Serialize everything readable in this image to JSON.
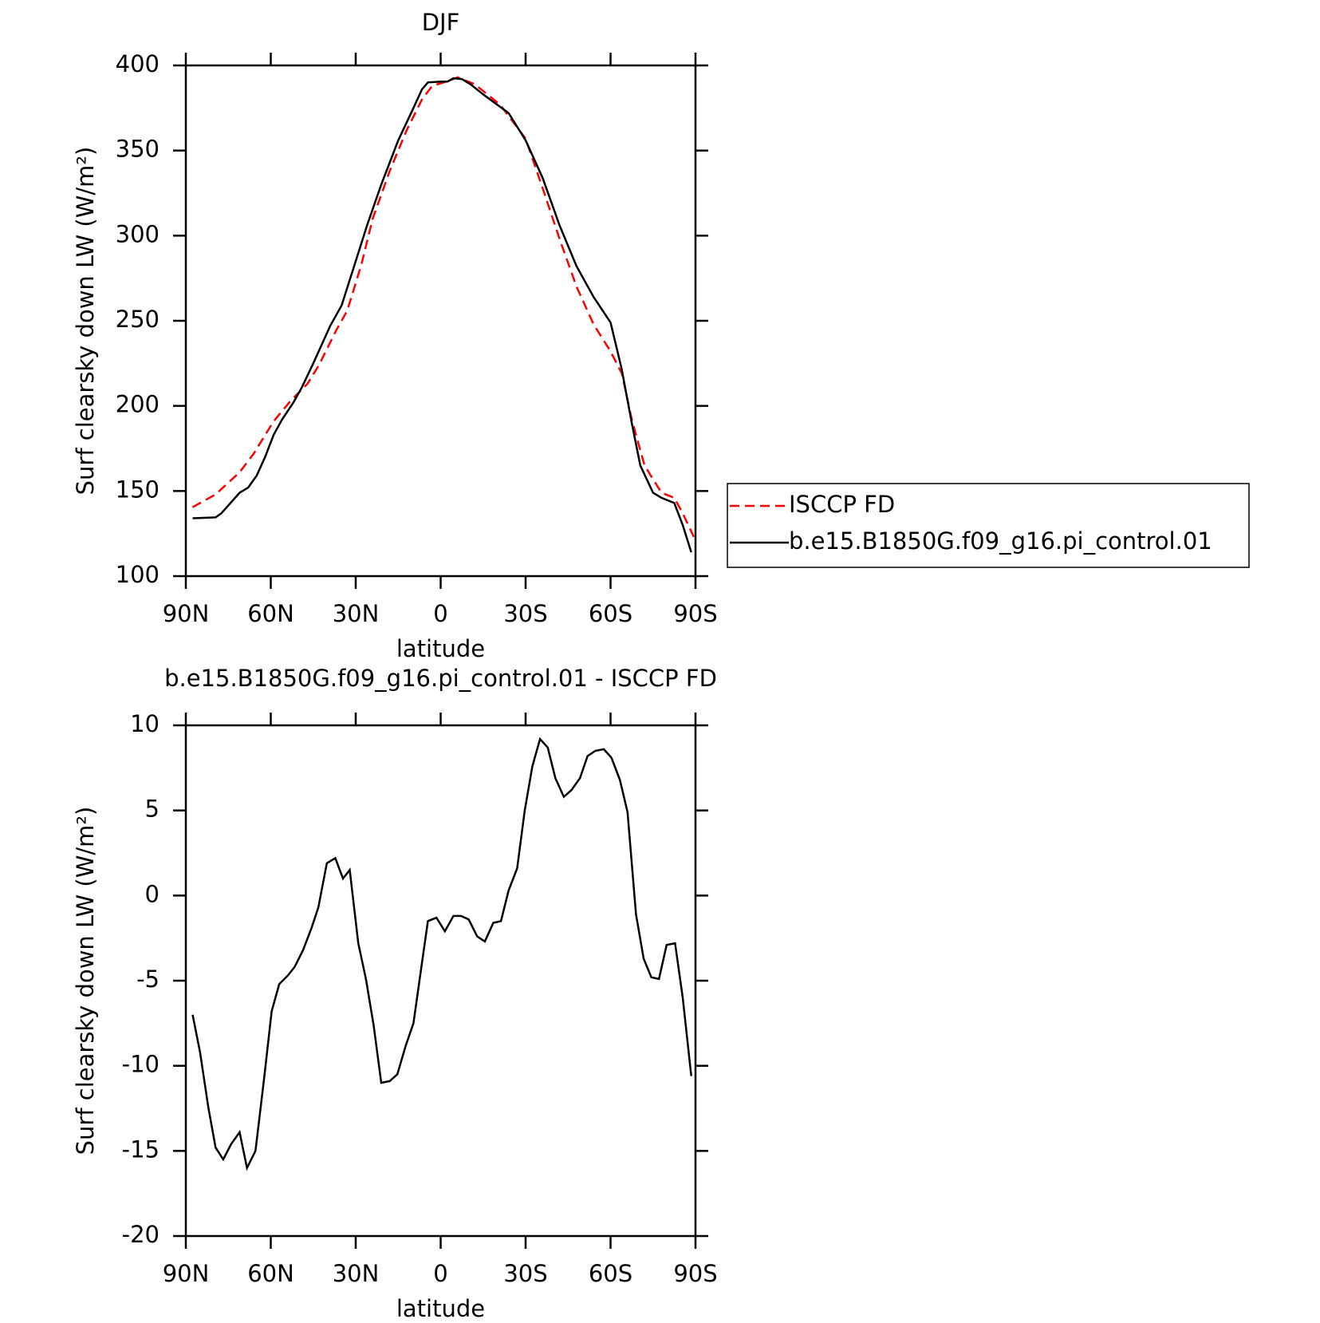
{
  "chart_data": [
    {
      "type": "line",
      "title": "DJF",
      "xlabel": "latitude",
      "ylabel": "Surf clearsky down LW (W/m²)",
      "xlim": [
        90,
        -90
      ],
      "ylim": [
        100,
        400
      ],
      "xticks": [
        {
          "value": 90,
          "label": "90N"
        },
        {
          "value": 60,
          "label": "60N"
        },
        {
          "value": 30,
          "label": "30N"
        },
        0,
        {
          "value": -30,
          "label": "30S"
        },
        {
          "value": -60,
          "label": "60S"
        },
        {
          "value": -90,
          "label": "90S"
        }
      ],
      "yticks": [
        100,
        150,
        200,
        250,
        300,
        350,
        400
      ],
      "legend": "right",
      "series": [
        {
          "name": "ISCCP FD",
          "color": "#ff0000",
          "style": "dashed",
          "x": [
            87.6,
            79.5,
            71,
            66,
            59,
            53,
            47,
            43,
            37,
            33,
            28,
            24,
            18,
            12,
            6.6,
            3,
            -3,
            -6,
            -12,
            -21,
            -30,
            -36,
            -42,
            -48,
            -54,
            -60,
            -64,
            -67.5,
            -72,
            -78,
            -82.5,
            -85.5,
            -89.4
          ],
          "values": [
            140.5,
            148,
            161,
            172,
            191,
            203,
            213,
            224,
            244,
            256,
            283,
            310,
            338,
            362,
            380,
            388,
            391,
            393,
            389,
            377,
            357,
            328,
            298,
            270,
            248,
            232,
            219,
            192,
            165,
            149,
            146,
            137,
            123
          ]
        },
        {
          "name": "b.e15.B1850G.f09_g16.pi_control.01",
          "color": "#000000",
          "style": "solid",
          "x": [
            87.6,
            79.5,
            77.4,
            71,
            68,
            65,
            62,
            59,
            56,
            52,
            49,
            45,
            39,
            35,
            30,
            26,
            21,
            15,
            9.6,
            6.6,
            4.5,
            0,
            -2.4,
            -4.5,
            -7.5,
            -10.5,
            -15,
            -24,
            -30,
            -36,
            -42,
            -48,
            -54,
            -60,
            -63.9,
            -67.5,
            -70.5,
            -75,
            -78,
            -82.5,
            -85.5,
            -88.5
          ],
          "values": [
            134,
            134.5,
            137,
            149,
            152,
            159,
            170,
            183,
            192,
            202,
            211,
            225,
            247,
            259,
            285,
            306,
            330,
            356,
            375,
            386,
            390,
            390.5,
            390.5,
            392.5,
            392,
            389,
            383,
            372,
            356,
            334,
            306,
            282,
            264,
            249,
            222,
            190,
            165,
            149,
            146,
            143,
            130,
            114
          ]
        }
      ]
    },
    {
      "type": "line",
      "title": "b.e15.B1850G.f09_g16.pi_control.01 - ISCCP FD",
      "xlabel": "latitude",
      "ylabel": "Surf clearsky down LW (W/m²)",
      "xlim": [
        90,
        -90
      ],
      "ylim": [
        -20,
        10
      ],
      "xticks": [
        {
          "value": 90,
          "label": "90N"
        },
        {
          "value": 60,
          "label": "60N"
        },
        {
          "value": 30,
          "label": "30N"
        },
        0,
        {
          "value": -30,
          "label": "30S"
        },
        {
          "value": -60,
          "label": "60S"
        },
        {
          "value": -90,
          "label": "90S"
        }
      ],
      "yticks": [
        -20,
        -15,
        -10,
        -5,
        0,
        5,
        10
      ],
      "series": [
        {
          "color": "#000000",
          "style": "solid",
          "x": [
            87.6,
            85,
            82,
            79.5,
            76.8,
            74,
            71,
            68.4,
            65.4,
            62.4,
            59.7,
            57,
            54,
            51.6,
            48.6,
            45.6,
            43.2,
            40.2,
            37.2,
            34.5,
            32.1,
            29.1,
            26.4,
            23.7,
            21,
            18,
            15.3,
            12.3,
            9.6,
            6.9,
            4.5,
            1.5,
            -1.5,
            -4.5,
            -7.2,
            -9.9,
            -12.9,
            -15.6,
            -18.6,
            -21.3,
            -24,
            -27,
            -29.7,
            -32.4,
            -35.1,
            -37.8,
            -40.5,
            -43.5,
            -46.2,
            -49.2,
            -51.9,
            -54.6,
            -57.6,
            -60.3,
            -63.3,
            -66,
            -69,
            -71.7,
            -74.4,
            -77.1,
            -79.8,
            -82.8,
            -85.5,
            -88.5
          ],
          "values": [
            -7,
            -9.2,
            -12.5,
            -14.8,
            -15.5,
            -14.6,
            -13.9,
            -16,
            -15,
            -10.8,
            -6.8,
            -5.2,
            -4.7,
            -4.2,
            -3.2,
            -1.9,
            -0.7,
            1.9,
            2.2,
            1,
            1.5,
            -2.8,
            -4.9,
            -7.6,
            -11,
            -10.9,
            -10.5,
            -8.8,
            -7.5,
            -4.3,
            -1.5,
            -1.3,
            -2.1,
            -1.2,
            -1.2,
            -1.4,
            -2.4,
            -2.7,
            -1.6,
            -1.5,
            0.3,
            1.6,
            5,
            7.6,
            9.2,
            8.7,
            6.9,
            5.8,
            6.2,
            6.9,
            8.2,
            8.5,
            8.6,
            8.1,
            6.8,
            4.9,
            -1.1,
            -3.7,
            -4.8,
            -4.9,
            -2.9,
            -2.8,
            -6,
            -10.6
          ]
        }
      ]
    }
  ]
}
